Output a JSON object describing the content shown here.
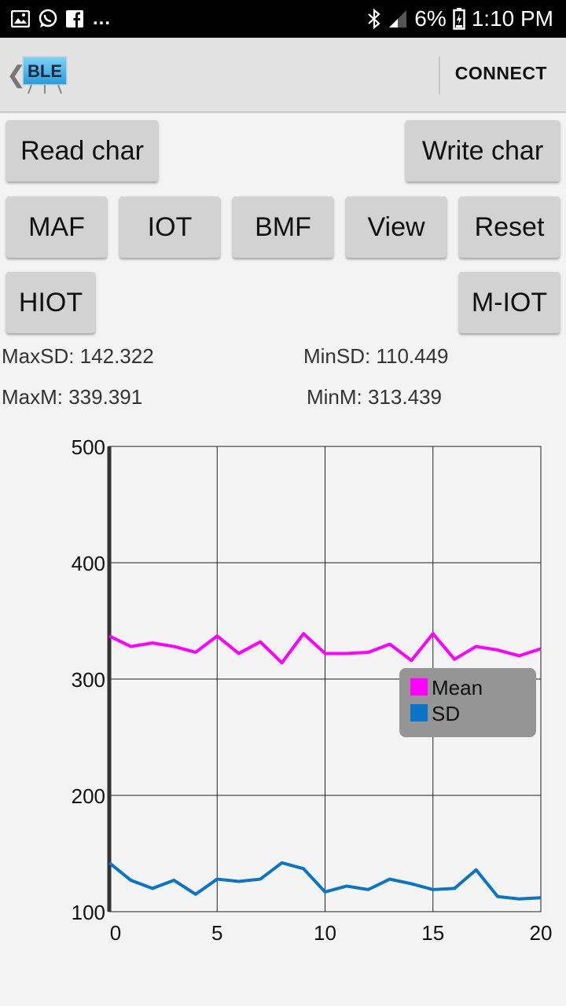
{
  "status_bar": {
    "overflow": "...",
    "battery": "6%",
    "time": "1:10 PM",
    "icons": [
      "image-icon",
      "whatsapp-icon",
      "facebook-icon",
      "bluetooth-icon",
      "signal-icon",
      "battery-icon"
    ]
  },
  "action_bar": {
    "logo_text": "BLE",
    "connect": "CONNECT"
  },
  "buttons": {
    "read_char": "Read char",
    "write_char": "Write char",
    "maf": "MAF",
    "iot": "IOT",
    "bmf": "BMF",
    "view": "View",
    "reset": "Reset",
    "hiot": "HIOT",
    "m_iot": "M-IOT"
  },
  "stats": {
    "max_sd": "MaxSD: 142.322",
    "min_sd": "MinSD: 110.449",
    "max_m": "MaxM: 339.391",
    "min_m": "MinM: 313.439"
  },
  "chart_data": {
    "type": "line",
    "title": "",
    "xlabel": "",
    "ylabel": "",
    "xlim": [
      0,
      20
    ],
    "ylim": [
      100,
      500
    ],
    "x_ticks": [
      0,
      5,
      10,
      15,
      20
    ],
    "y_ticks": [
      100,
      200,
      300,
      400,
      500
    ],
    "grid": true,
    "legend_position": "right",
    "x": [
      0,
      1,
      2,
      3,
      4,
      5,
      6,
      7,
      8,
      9,
      10,
      11,
      12,
      13,
      14,
      15,
      16,
      17,
      18,
      19,
      20
    ],
    "series": [
      {
        "name": "Mean",
        "color": "#ff00ff",
        "values": [
          337,
          328,
          331,
          328,
          323,
          337,
          322,
          332,
          314,
          339,
          322,
          322,
          323,
          330,
          316,
          339,
          317,
          328,
          325,
          320,
          326
        ]
      },
      {
        "name": "SD",
        "color": "#0a74c9",
        "values": [
          142,
          127,
          120,
          127,
          115,
          128,
          126,
          128,
          142,
          137,
          117,
          122,
          119,
          128,
          124,
          119,
          120,
          136,
          113,
          111,
          112
        ]
      }
    ]
  }
}
